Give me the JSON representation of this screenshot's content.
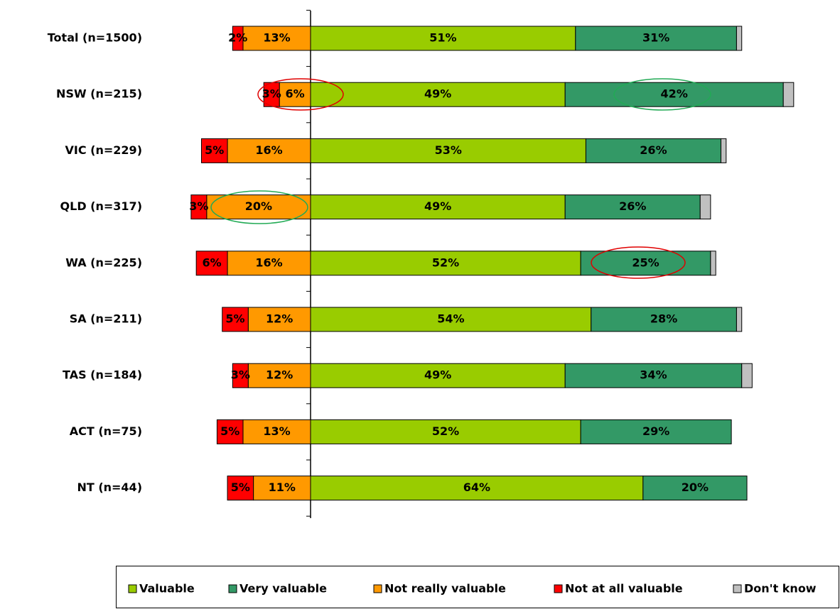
{
  "chart_data": {
    "type": "diverging-stacked-bar",
    "categories": [
      "Total (n=1500)",
      "NSW (n=215)",
      "VIC (n=229)",
      "QLD (n=317)",
      "WA (n=225)",
      "SA (n=211)",
      "TAS (n=184)",
      "ACT (n=75)",
      "NT (n=44)"
    ],
    "series": [
      {
        "name": "Valuable",
        "color": "#99cc00",
        "values": [
          51,
          49,
          53,
          49,
          52,
          54,
          49,
          52,
          64
        ],
        "value_labels": [
          "51%",
          "49%",
          "53%",
          "49%",
          "52%",
          "54%",
          "49%",
          "52%",
          "64%"
        ]
      },
      {
        "name": "Very valuable",
        "color": "#339966",
        "values": [
          31,
          42,
          26,
          26,
          25,
          28,
          34,
          29,
          20
        ],
        "value_labels": [
          "31%",
          "42%",
          "26%",
          "26%",
          "25%",
          "28%",
          "34%",
          "29%",
          "20%"
        ]
      },
      {
        "name": "Not really valuable",
        "color": "#ff9900",
        "values": [
          13,
          6,
          16,
          20,
          16,
          12,
          12,
          13,
          11
        ],
        "value_labels": [
          "13%",
          "6%",
          "16%",
          "20%",
          "16%",
          "12%",
          "12%",
          "13%",
          "11%"
        ]
      },
      {
        "name": "Not at all valuable",
        "color": "#ff0000",
        "values": [
          2,
          3,
          5,
          3,
          6,
          5,
          3,
          5,
          5
        ],
        "value_labels": [
          "2%",
          "3%",
          "5%",
          "3%",
          "6%",
          "5%",
          "3%",
          "5%",
          "5%"
        ]
      },
      {
        "name": "Don't know",
        "color": "#c0c0c0",
        "values": [
          1,
          2,
          1,
          2,
          1,
          1,
          2,
          0,
          0
        ]
      }
    ],
    "legend": "bottom"
  }
}
